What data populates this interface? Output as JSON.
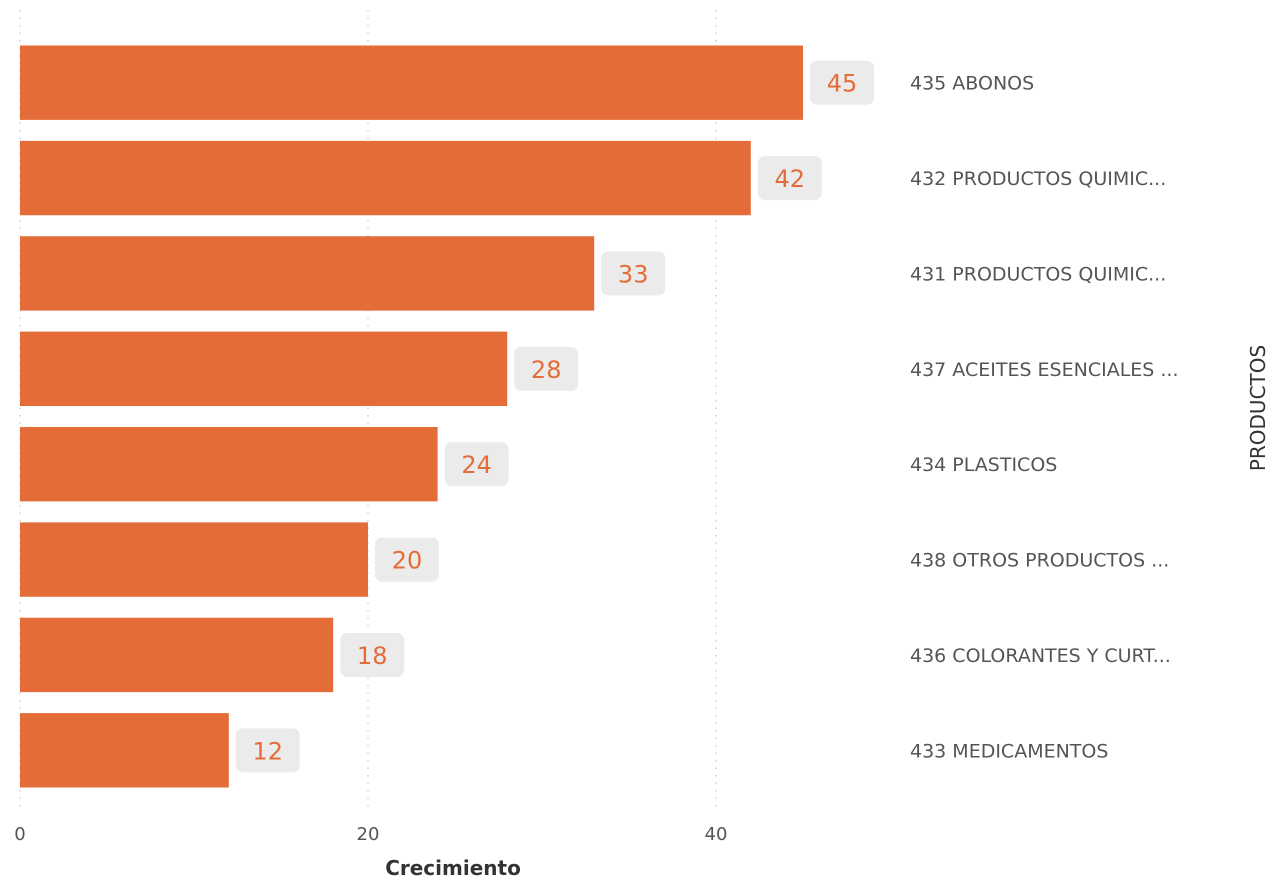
{
  "chart_data": {
    "type": "bar",
    "orientation": "horizontal",
    "categories": [
      "435 ABONOS",
      "432 PRODUCTOS QUIMIC...",
      "431 PRODUCTOS QUIMIC...",
      "437 ACEITES ESENCIALES ...",
      "434 PLASTICOS",
      "438 OTROS PRODUCTOS ...",
      "436 COLORANTES Y CURT...",
      "433 MEDICAMENTOS"
    ],
    "values": [
      45,
      42,
      33,
      28,
      24,
      20,
      18,
      12
    ],
    "data_labels": [
      "45",
      "42",
      "33",
      "28",
      "24",
      "20",
      "18",
      "12"
    ],
    "xlabel": "Crecimiento",
    "ylabel": "PRODUCTOS",
    "xlim": [
      0,
      50
    ],
    "x_ticks": [
      0,
      20,
      40
    ],
    "x_tick_labels": [
      "0",
      "20",
      "40"
    ],
    "grid": "vertical dotted",
    "category_axis_position": "right",
    "colors": {
      "bar": "#E46C38",
      "data_label_text": "#E46C38",
      "data_label_background": "#EBEBEB",
      "gridline": "#C8C8C8",
      "tick_text": "#555555",
      "axis_title": "#333333"
    }
  }
}
